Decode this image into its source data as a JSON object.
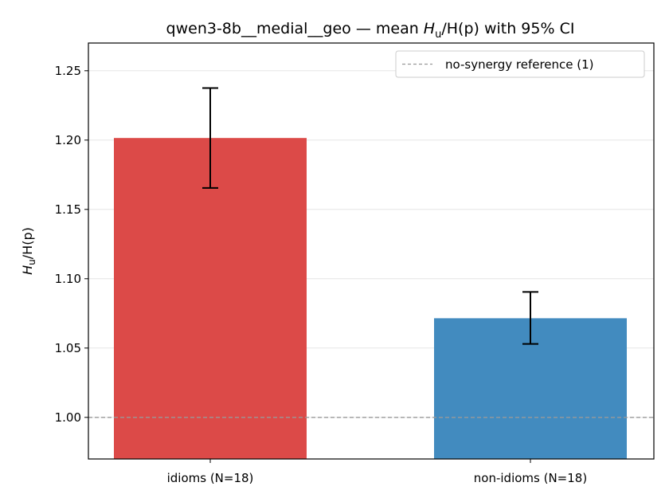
{
  "chart_data": {
    "type": "bar",
    "title_prefix": "qwen3-8b__medial__geo — mean ",
    "title_math_base": "H",
    "title_math_sub": "u",
    "title_math_rest": "/H(p)",
    "title_suffix": " with 95% CI",
    "ylabel_base": "H",
    "ylabel_sub": "u",
    "ylabel_rest": "/H(p)",
    "categories": [
      "idioms (N=18)",
      "non-idioms (N=18)"
    ],
    "values": [
      1.2015,
      1.0715
    ],
    "ci_low": [
      1.1655,
      1.053
    ],
    "ci_high": [
      1.2375,
      1.0905
    ],
    "colors": [
      "#dc4a48",
      "#428bbf"
    ],
    "ylim": [
      0.97,
      1.27
    ],
    "yticks": [
      1.0,
      1.05,
      1.1,
      1.15,
      1.2,
      1.25
    ],
    "ytick_labels": [
      "1.00",
      "1.05",
      "1.10",
      "1.15",
      "1.20",
      "1.25"
    ],
    "reference_value": 1.0,
    "reference_color": "#999999",
    "grid": "y",
    "legend": {
      "placement": "top-right",
      "entries": [
        "no-synergy reference (1)"
      ]
    }
  }
}
